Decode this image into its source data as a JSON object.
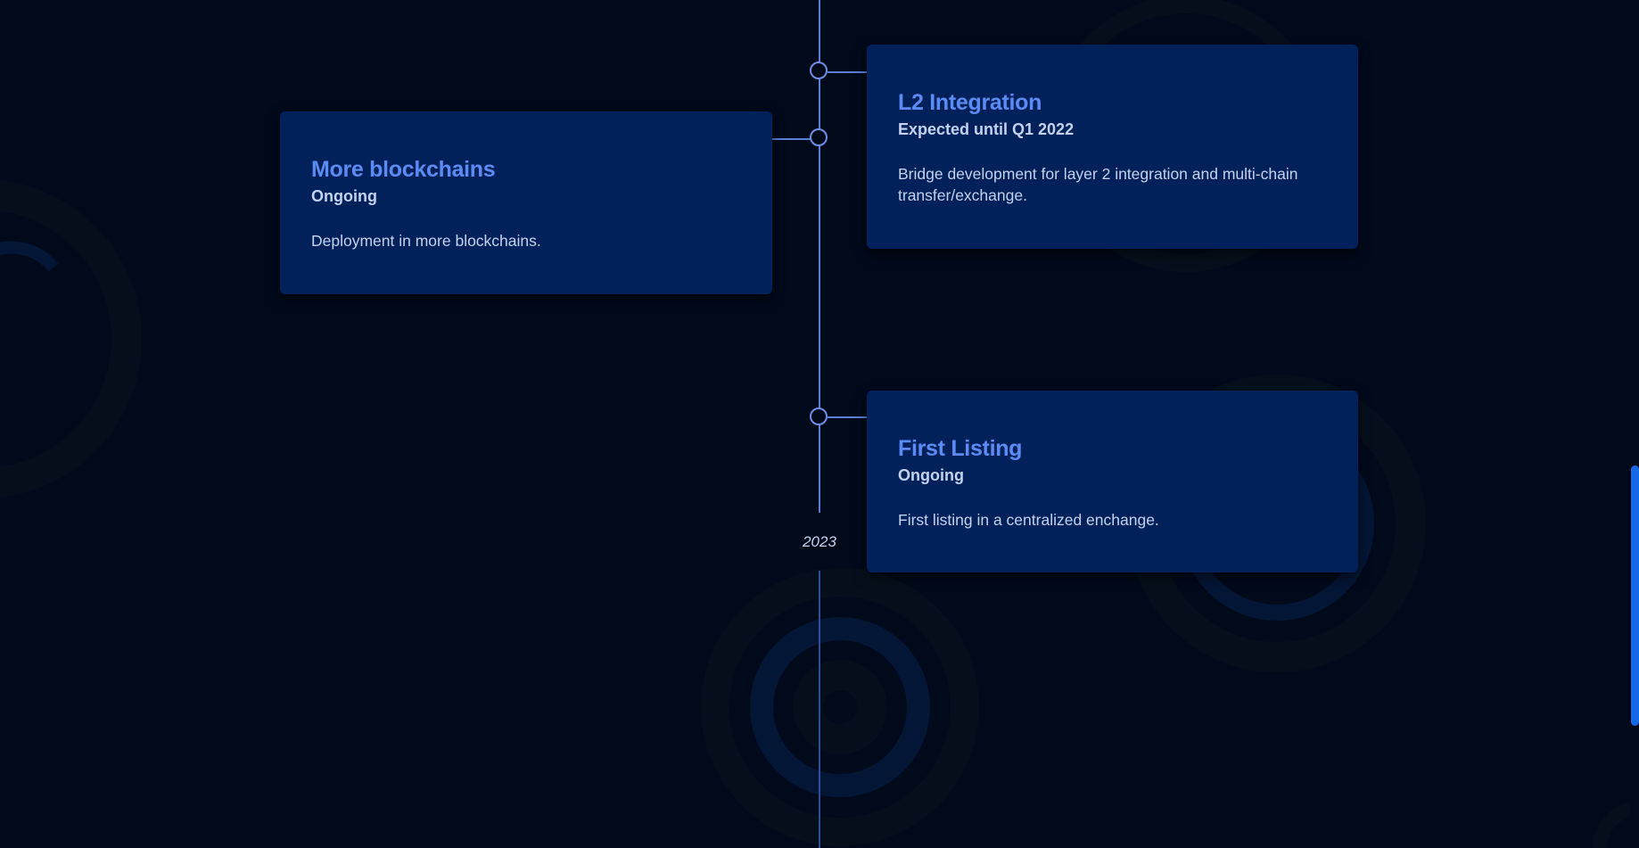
{
  "colors": {
    "background": "#010a1b",
    "card": "#02215a",
    "title": "#5d8bf4",
    "text": "#c3d2ef",
    "line": "#5b7fd9",
    "scrollbar": "#1668e8"
  },
  "timeline": {
    "milestones": [
      {
        "title": "L2 Integration",
        "status": "Expected until Q1 2022",
        "description": "Bridge development for layer 2 integration and multi-chain transfer/exchange."
      },
      {
        "title": "More blockchains",
        "status": "Ongoing",
        "description": "Deployment in more blockchains."
      },
      {
        "title": "First Listing",
        "status": "Ongoing",
        "description": "First listing in a centralized enchange."
      }
    ],
    "year_label": "2023"
  }
}
